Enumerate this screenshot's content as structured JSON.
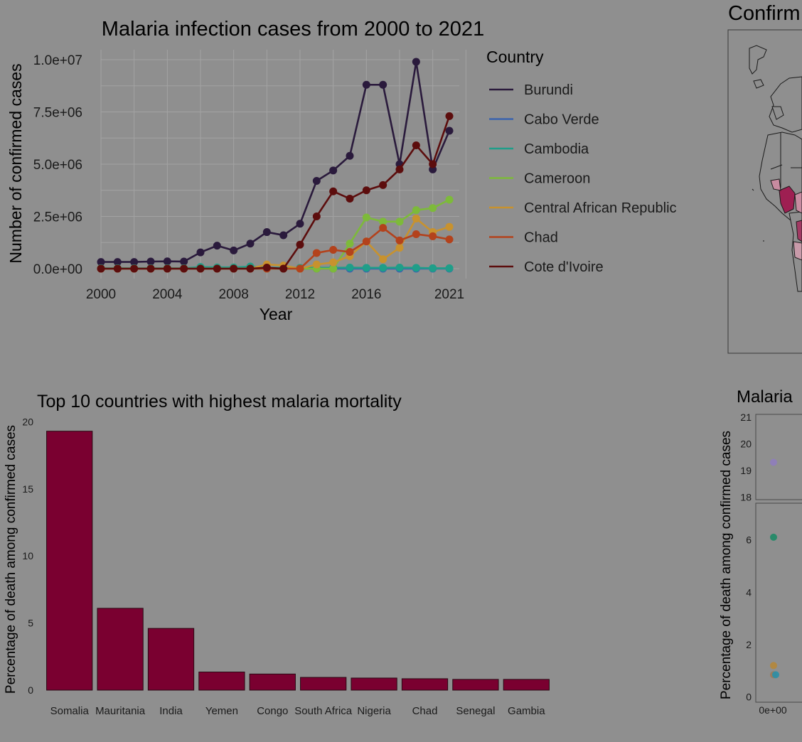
{
  "chart_data": [
    {
      "type": "line",
      "title": "Malaria infection cases from 2000 to 2021",
      "xlabel": "Year",
      "ylabel": "Number of confirmed cases",
      "x": [
        2000,
        2001,
        2002,
        2003,
        2004,
        2005,
        2006,
        2007,
        2008,
        2009,
        2010,
        2011,
        2012,
        2013,
        2014,
        2015,
        2016,
        2017,
        2018,
        2019,
        2020,
        2021
      ],
      "xticks": [
        2000,
        2004,
        2008,
        2012,
        2016,
        2021
      ],
      "xtick_labels": [
        "2000",
        "2004",
        "2008",
        "2012",
        "2016",
        "2021"
      ],
      "yticks": [
        0,
        2500000,
        5000000,
        7500000,
        10000000
      ],
      "ytick_labels": [
        "0.0e+00",
        "2.5e+06",
        "5.0e+06",
        "7.5e+06",
        "1.0e+07"
      ],
      "xlim": [
        2000,
        2021
      ],
      "ylim": [
        0,
        10000000
      ],
      "grid": true,
      "legend_title": "Country",
      "legend_position": "right",
      "series": [
        {
          "name": "Burundi",
          "color": "#2a1a3c",
          "values": [
            320000,
            320000,
            320000,
            340000,
            350000,
            340000,
            780000,
            1100000,
            870000,
            1200000,
            1750000,
            1600000,
            2150000,
            4200000,
            4700000,
            5400000,
            8800000,
            8800000,
            5000000,
            9900000,
            4750000,
            6600000
          ]
        },
        {
          "name": "Cabo Verde",
          "color": "#3a63ad",
          "values": [
            0,
            0,
            0,
            0,
            0,
            0,
            0,
            0,
            0,
            0,
            0,
            0,
            0,
            0,
            0,
            0,
            0,
            0,
            0,
            0,
            0,
            0
          ]
        },
        {
          "name": "Cambodia",
          "color": "#1f9e89",
          "values": [
            20000,
            20000,
            20000,
            20000,
            20000,
            20000,
            80000,
            60000,
            60000,
            100000,
            40000,
            50000,
            40000,
            40000,
            40000,
            50000,
            40000,
            40000,
            50000,
            40000,
            20000,
            20000
          ]
        },
        {
          "name": "Cameroon",
          "color": "#7dba3a",
          "values": [
            0,
            0,
            0,
            0,
            0,
            0,
            0,
            0,
            0,
            0,
            0,
            0,
            0,
            0,
            0,
            1200000,
            2450000,
            2250000,
            2250000,
            2800000,
            2900000,
            3300000
          ]
        },
        {
          "name": "Central African Republic",
          "color": "#c8922e",
          "values": [
            0,
            0,
            0,
            0,
            0,
            0,
            0,
            0,
            0,
            0,
            200000,
            150000,
            0,
            200000,
            300000,
            600000,
            1300000,
            450000,
            1000000,
            2400000,
            1750000,
            2000000
          ]
        },
        {
          "name": "Chad",
          "color": "#b3421c",
          "values": [
            0,
            0,
            0,
            0,
            0,
            0,
            0,
            0,
            0,
            0,
            0,
            0,
            0,
            750000,
            900000,
            800000,
            1300000,
            1950000,
            1350000,
            1650000,
            1550000,
            1400000
          ]
        },
        {
          "name": "Cote d'Ivoire",
          "color": "#5c0d0d",
          "values": [
            0,
            0,
            0,
            0,
            0,
            0,
            0,
            0,
            0,
            0,
            50000,
            0,
            1150000,
            2500000,
            3700000,
            3350000,
            3750000,
            4000000,
            4750000,
            5900000,
            5000000,
            7300000
          ]
        }
      ]
    },
    {
      "type": "bar",
      "title": "Top 10 countries with highest malaria mortality",
      "xlabel": "",
      "ylabel": "Percentage of death among confirmed cases",
      "categories": [
        "Somalia",
        "Mauritania",
        "India",
        "Yemen",
        "Congo",
        "South Africa",
        "Nigeria",
        "Chad",
        "Senegal",
        "Gambia"
      ],
      "values": [
        19.3,
        6.1,
        4.6,
        1.35,
        1.2,
        0.95,
        0.9,
        0.85,
        0.8,
        0.8
      ],
      "yticks": [
        0,
        5,
        10,
        15,
        20
      ],
      "ytick_labels": [
        "0",
        "5",
        "10",
        "15",
        "20"
      ],
      "ylim": [
        0,
        20.5
      ],
      "bar_color": "#7a0030",
      "grid": false
    },
    {
      "type": "map",
      "title": "Confirm",
      "note": "cropped choropleth map of confirmed cases"
    },
    {
      "type": "scatter",
      "title": "Malaria",
      "ylabel": "Percentage of death among confirmed cases",
      "xtick_labels": [
        "0e+00"
      ],
      "upper_panel": {
        "yticks": [
          18,
          19,
          20,
          21
        ],
        "ytick_labels": [
          "18",
          "19",
          "20",
          "21"
        ],
        "ylim": [
          17.9,
          21.1
        ],
        "points": [
          {
            "x": 0,
            "y": 19.3,
            "color": "#8f7fb8"
          }
        ]
      },
      "lower_panel": {
        "yticks": [
          0,
          2,
          4,
          6
        ],
        "ytick_labels": [
          "0",
          "2",
          "4",
          "6"
        ],
        "ylim": [
          -0.2,
          7.4
        ],
        "points": [
          {
            "x": 0,
            "y": 6.1,
            "color": "#1e8a66"
          },
          {
            "x": 0,
            "y": 1.2,
            "color": "#b5873a"
          },
          {
            "x": 0,
            "y": 0.85,
            "color": "#9a7a5a"
          },
          {
            "x": 0,
            "y": 0.85,
            "color": "#2a8fa8"
          }
        ]
      }
    }
  ]
}
